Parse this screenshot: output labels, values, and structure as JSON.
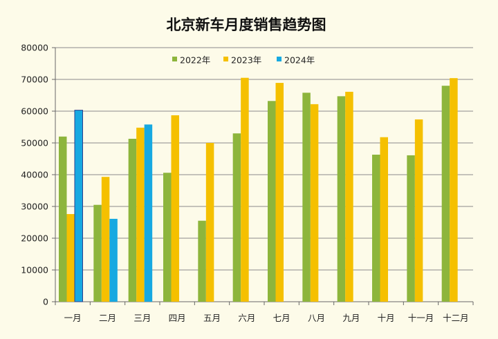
{
  "chart_data": {
    "type": "bar",
    "title": "北京新车月度销售趋势图",
    "xlabel": "",
    "ylabel": "",
    "ylim": [
      0,
      80000
    ],
    "yticks": [
      0,
      10000,
      20000,
      30000,
      40000,
      50000,
      60000,
      70000,
      80000
    ],
    "grid": true,
    "legend_position": "top-center",
    "categories": [
      "一月",
      "二月",
      "三月",
      "四月",
      "五月",
      "六月",
      "七月",
      "八月",
      "九月",
      "十月",
      "十一月",
      "十二月"
    ],
    "series": [
      {
        "name": "2022年",
        "color": "#8db53c",
        "values": [
          52000,
          30500,
          51300,
          40600,
          25500,
          53000,
          63200,
          65800,
          64700,
          46300,
          46100,
          68000
        ]
      },
      {
        "name": "2023年",
        "color": "#f5c000",
        "values": [
          27600,
          39300,
          54800,
          58700,
          50000,
          70500,
          68900,
          62200,
          66100,
          51800,
          57400,
          70400
        ]
      },
      {
        "name": "2024年",
        "color": "#17a9e1",
        "values": [
          60300,
          26100,
          55800,
          null,
          null,
          null,
          null,
          null,
          null,
          null,
          null,
          null
        ]
      }
    ]
  }
}
